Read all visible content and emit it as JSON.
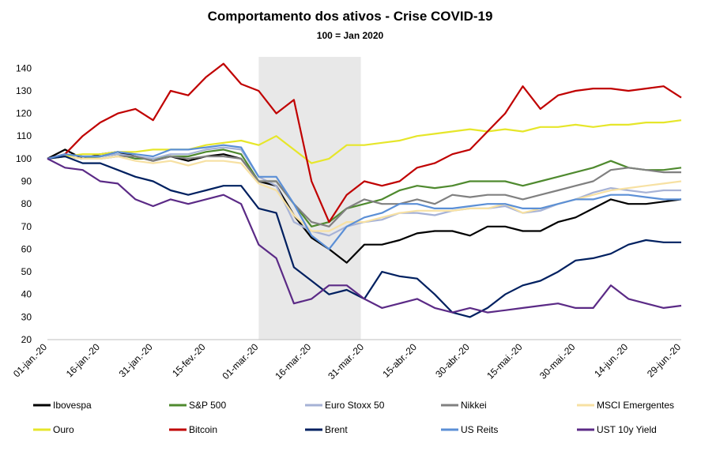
{
  "chart_data": {
    "type": "line",
    "title": "Comportamento dos ativos - Crise COVID-19",
    "subtitle": "100 = Jan 2020",
    "xlabel": "",
    "ylabel": "",
    "ylim": [
      20,
      145
    ],
    "yticks": [
      20,
      30,
      40,
      50,
      60,
      70,
      80,
      90,
      100,
      110,
      120,
      130,
      140
    ],
    "x_ticks": [
      "01-jan.-20",
      "16-jan.-20",
      "31-jan.-20",
      "15-fev.-20",
      "01-mar.-20",
      "16-mar.-20",
      "31-mar.-20",
      "15-abr.-20",
      "30-abr.-20",
      "15-mai.-20",
      "30-mai.-20",
      "14-jun.-20",
      "29-jun.-20"
    ],
    "x_tick_days": [
      0,
      15,
      30,
      45,
      60,
      75,
      90,
      105,
      120,
      135,
      150,
      165,
      180
    ],
    "shaded_range_days": [
      60,
      89
    ],
    "grid": false,
    "legend_position": "bottom",
    "x": [
      0,
      5,
      10,
      15,
      20,
      25,
      30,
      35,
      40,
      45,
      50,
      55,
      60,
      65,
      70,
      75,
      80,
      85,
      90,
      95,
      100,
      105,
      110,
      115,
      120,
      125,
      130,
      135,
      140,
      145,
      150,
      155,
      160,
      165,
      170,
      175,
      180
    ],
    "series": [
      {
        "name": "Ibovespa",
        "color": "#000000",
        "values": [
          100,
          104,
          100,
          102,
          103,
          101,
          99,
          101,
          99,
          101,
          102,
          100,
          90,
          88,
          75,
          65,
          60,
          54,
          62,
          62,
          64,
          67,
          68,
          68,
          66,
          70,
          70,
          68,
          68,
          72,
          74,
          78,
          82,
          80,
          80,
          81,
          82
        ]
      },
      {
        "name": "S&P 500",
        "color": "#4f8a2f",
        "values": [
          100,
          101,
          100,
          101,
          102,
          100,
          100,
          101,
          101,
          103,
          104,
          102,
          90,
          90,
          80,
          70,
          72,
          78,
          80,
          82,
          86,
          88,
          87,
          88,
          90,
          90,
          90,
          88,
          90,
          92,
          94,
          96,
          99,
          96,
          95,
          95,
          96
        ]
      },
      {
        "name": "Euro Stoxx 50",
        "color": "#a6b2d6",
        "values": [
          100,
          102,
          101,
          101,
          102,
          101,
          100,
          102,
          102,
          104,
          105,
          104,
          92,
          88,
          72,
          68,
          66,
          70,
          72,
          73,
          76,
          76,
          75,
          77,
          78,
          78,
          79,
          76,
          77,
          80,
          82,
          85,
          87,
          86,
          85,
          86,
          86
        ]
      },
      {
        "name": "Nikkei",
        "color": "#808080",
        "values": [
          100,
          101,
          100,
          100,
          101,
          101,
          99,
          101,
          100,
          101,
          101,
          100,
          90,
          90,
          80,
          72,
          70,
          78,
          82,
          80,
          80,
          82,
          80,
          84,
          83,
          84,
          84,
          82,
          84,
          86,
          88,
          90,
          95,
          96,
          95,
          94,
          94
        ]
      },
      {
        "name": "MSCI Emergentes",
        "color": "#f7e1a3",
        "values": [
          100,
          101,
          100,
          100,
          101,
          99,
          98,
          99,
          97,
          99,
          99,
          98,
          89,
          86,
          75,
          68,
          68,
          72,
          72,
          74,
          76,
          77,
          77,
          77,
          78,
          78,
          80,
          76,
          78,
          80,
          82,
          84,
          86,
          87,
          88,
          89,
          90
        ]
      },
      {
        "name": "Ouro",
        "color": "#e6e62a",
        "values": [
          100,
          101,
          102,
          102,
          103,
          103,
          104,
          104,
          104,
          106,
          107,
          108,
          106,
          110,
          104,
          98,
          100,
          106,
          106,
          107,
          108,
          110,
          111,
          112,
          113,
          112,
          113,
          112,
          114,
          114,
          115,
          114,
          115,
          115,
          116,
          116,
          117
        ]
      },
      {
        "name": "Bitcoin",
        "color": "#c00000",
        "values": [
          100,
          102,
          110,
          116,
          120,
          122,
          117,
          130,
          128,
          136,
          142,
          133,
          130,
          120,
          126,
          90,
          72,
          84,
          90,
          88,
          90,
          96,
          98,
          102,
          104,
          112,
          120,
          132,
          122,
          128,
          130,
          131,
          131,
          130,
          131,
          132,
          127
        ]
      },
      {
        "name": "Brent",
        "color": "#002060",
        "values": [
          100,
          101,
          98,
          98,
          95,
          92,
          90,
          86,
          84,
          86,
          88,
          88,
          78,
          76,
          52,
          46,
          40,
          42,
          38,
          50,
          48,
          47,
          40,
          32,
          30,
          34,
          40,
          44,
          46,
          50,
          55,
          56,
          58,
          62,
          64,
          63,
          63
        ]
      },
      {
        "name": "US Reits",
        "color": "#5b8fd6",
        "values": [
          100,
          102,
          101,
          101,
          103,
          102,
          101,
          104,
          104,
          105,
          106,
          105,
          92,
          92,
          80,
          66,
          60,
          70,
          74,
          76,
          80,
          80,
          78,
          78,
          79,
          80,
          80,
          78,
          78,
          80,
          82,
          82,
          84,
          84,
          83,
          82,
          82
        ]
      },
      {
        "name": "UST 10y Yield",
        "color": "#5b2a86",
        "values": [
          100,
          96,
          95,
          90,
          89,
          82,
          79,
          82,
          80,
          82,
          84,
          80,
          62,
          56,
          36,
          38,
          44,
          44,
          38,
          34,
          36,
          38,
          34,
          32,
          34,
          32,
          33,
          34,
          35,
          36,
          34,
          34,
          44,
          38,
          36,
          34,
          35
        ]
      }
    ]
  }
}
